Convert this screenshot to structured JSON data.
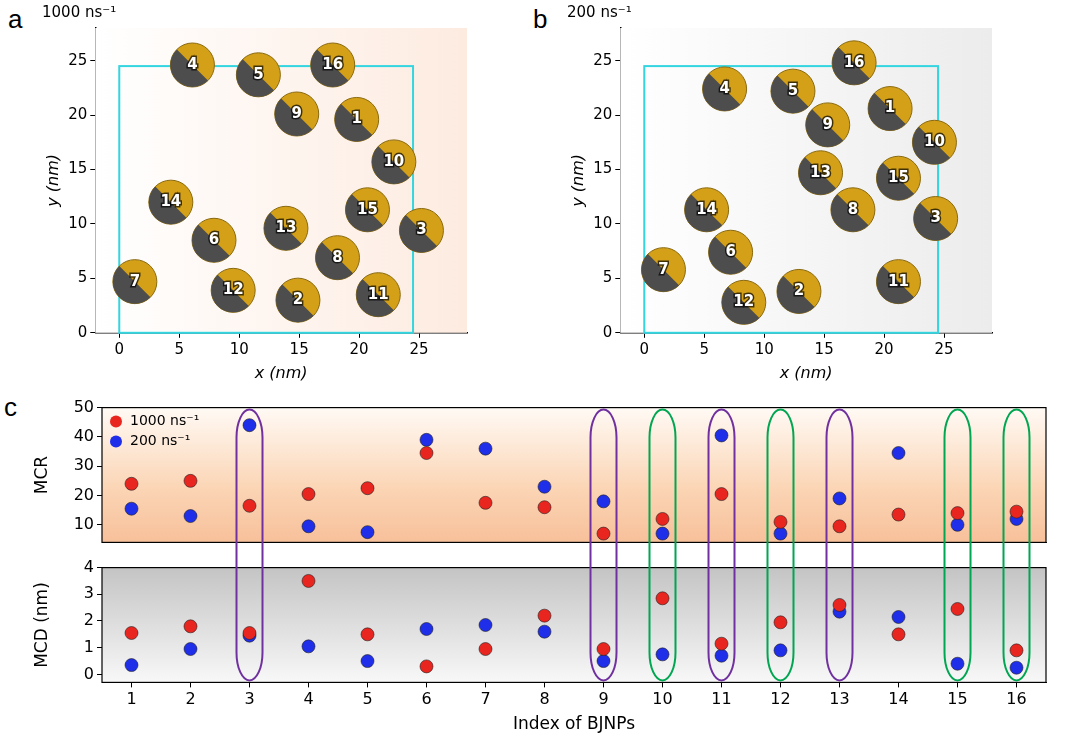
{
  "chart_data": [
    {
      "panel": "a",
      "type": "scatter",
      "title": "1000 ns⁻¹",
      "x_label": "x (nm)",
      "y_label": "y (nm)",
      "point_labels": [
        4,
        5,
        16,
        9,
        1,
        10,
        14,
        6,
        13,
        15,
        3,
        8,
        7,
        12,
        2,
        11
      ],
      "x": [
        6.1,
        11.6,
        17.8,
        14.8,
        19.8,
        22.9,
        4.3,
        7.9,
        13.9,
        20.7,
        25.2,
        18.2,
        1.3,
        9.5,
        14.9,
        21.6
      ],
      "y": [
        24.6,
        23.7,
        24.6,
        20.1,
        19.6,
        15.7,
        12.0,
        8.5,
        9.6,
        11.3,
        9.4,
        6.9,
        4.7,
        3.9,
        3.0,
        3.5
      ],
      "color": "#d4a017",
      "box": 24.5,
      "xlim": [
        -2,
        29
      ],
      "ylim": [
        0,
        28
      ],
      "xticks": [
        0,
        5,
        10,
        15,
        20,
        25
      ],
      "yticks": [
        0,
        5,
        10,
        15,
        20,
        25
      ],
      "grid": false
    },
    {
      "panel": "b",
      "type": "scatter",
      "title": "200 ns⁻¹",
      "x_label": "x (nm)",
      "y_label": "y (nm)",
      "point_labels": [
        16,
        4,
        5,
        9,
        1,
        10,
        13,
        15,
        14,
        8,
        3,
        6,
        7,
        12,
        2,
        11
      ],
      "x": [
        17.5,
        6.7,
        12.4,
        15.3,
        20.5,
        24.2,
        14.7,
        21.2,
        5.2,
        17.4,
        24.3,
        7.2,
        1.6,
        8.3,
        12.9,
        21.2
      ],
      "y": [
        24.8,
        22.4,
        22.2,
        19.1,
        20.6,
        17.5,
        14.7,
        14.2,
        11.3,
        11.3,
        10.5,
        7.4,
        5.8,
        2.8,
        3.8,
        4.7
      ],
      "color": "#d4a017",
      "box": 24.5,
      "xlim": [
        -2,
        29
      ],
      "ylim": [
        0,
        28
      ],
      "xticks": [
        0,
        5,
        10,
        15,
        20,
        25
      ],
      "yticks": [
        0,
        5,
        10,
        15,
        20,
        25
      ],
      "grid": false
    },
    {
      "panel": "c",
      "type": "scatter",
      "y_label": "MCR",
      "categories": [
        1,
        2,
        3,
        4,
        5,
        6,
        7,
        8,
        9,
        10,
        11,
        12,
        13,
        14,
        15,
        16
      ],
      "series": [
        {
          "name": "1000 ns⁻¹",
          "color": "#e8251f",
          "values": [
            24,
            25,
            16.5,
            20.5,
            22.5,
            34.5,
            17.5,
            16,
            7,
            12,
            20.5,
            11,
            9.5,
            13.5,
            14,
            14.5
          ]
        },
        {
          "name": "200 ns⁻¹",
          "color": "#1f2ee8",
          "values": [
            15.5,
            13,
            44,
            9.5,
            7.5,
            39,
            36,
            23,
            18,
            7,
            40.5,
            7,
            19,
            34.5,
            10,
            12
          ]
        }
      ],
      "highlights": [
        {
          "categories": [
            3,
            9,
            11,
            13
          ],
          "color": "#7030a0"
        },
        {
          "categories": [
            10,
            12,
            15,
            16
          ],
          "color": "#00a651"
        }
      ],
      "ylim": [
        4,
        50
      ],
      "yticks": [
        10,
        20,
        30,
        40,
        50
      ],
      "grid": false,
      "legend": "upper left",
      "tick_labels": "y"
    },
    {
      "type": "scatter",
      "y_label": "MCD (nm)",
      "x_label": "Index of BJNPs",
      "categories": [
        1,
        2,
        3,
        4,
        5,
        6,
        7,
        8,
        9,
        10,
        11,
        12,
        13,
        14,
        15,
        16
      ],
      "series": [
        {
          "color": "#e8251f",
          "values": [
            1.55,
            1.8,
            1.55,
            3.5,
            1.5,
            0.3,
            0.95,
            2.2,
            0.95,
            2.85,
            1.15,
            1.95,
            2.6,
            1.5,
            2.45,
            0.9
          ]
        },
        {
          "color": "#1f2ee8",
          "values": [
            0.35,
            0.95,
            1.45,
            1.05,
            0.5,
            1.7,
            1.85,
            1.6,
            0.5,
            0.75,
            0.7,
            0.9,
            2.35,
            2.15,
            0.4,
            0.25
          ]
        }
      ],
      "highlights": [
        {
          "categories": [
            3,
            9,
            11,
            13
          ],
          "color": "#7030a0"
        },
        {
          "categories": [
            10,
            12,
            15,
            16
          ],
          "color": "#00a651"
        }
      ],
      "ylim": [
        -0.3,
        4
      ],
      "yticks": [
        0,
        1,
        2,
        3,
        4
      ],
      "grid": false
    }
  ]
}
